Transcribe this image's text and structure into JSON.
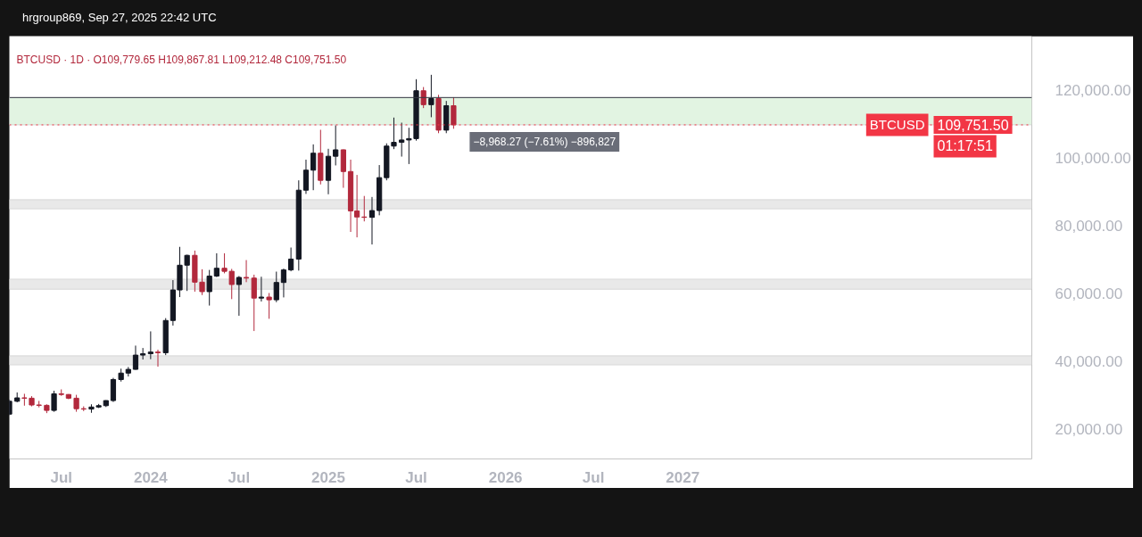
{
  "chart_data": {
    "type": "candlestick",
    "title": "hrgroup869, Sep 27, 2025 22:42 UTC",
    "subtitle": "BTCUSD · 1D · O109,779.65 H109,867.81 L109,212.48 C109,751.50",
    "x": [
      "2023-03-16",
      "2023-04-01",
      "2023-04-16",
      "2023-05-01",
      "2023-05-16",
      "2023-06-01",
      "2023-06-16",
      "2023-07-01",
      "2023-07-16",
      "2023-08-01",
      "2023-08-16",
      "2023-09-01",
      "2023-09-16",
      "2023-10-01",
      "2023-10-16",
      "2023-11-01",
      "2023-11-16",
      "2023-12-01",
      "2023-12-16",
      "2024-01-01",
      "2024-01-16",
      "2024-02-01",
      "2024-02-16",
      "2024-03-01",
      "2024-03-16",
      "2024-04-01",
      "2024-04-16",
      "2024-05-01",
      "2024-05-16",
      "2024-06-01",
      "2024-06-16",
      "2024-07-01",
      "2024-07-16",
      "2024-08-01",
      "2024-08-16",
      "2024-09-01",
      "2024-09-16",
      "2024-10-01",
      "2024-10-16",
      "2024-11-01",
      "2024-11-16",
      "2024-12-01",
      "2024-12-16",
      "2025-01-01",
      "2025-01-16",
      "2025-02-01",
      "2025-02-16",
      "2025-03-01",
      "2025-03-16",
      "2025-04-01",
      "2025-04-16",
      "2025-05-01",
      "2025-05-16",
      "2025-06-01",
      "2025-06-16",
      "2025-07-01",
      "2025-07-16",
      "2025-08-01",
      "2025-08-16",
      "2025-09-01",
      "2025-09-16"
    ],
    "ohlc": [
      [
        24500,
        28800,
        24200,
        28300
      ],
      [
        28300,
        30900,
        28000,
        29300
      ],
      [
        29300,
        30500,
        27000,
        29200
      ],
      [
        29200,
        29800,
        26800,
        27200
      ],
      [
        27200,
        28400,
        26500,
        27100
      ],
      [
        27100,
        27400,
        24800,
        25600
      ],
      [
        25600,
        31400,
        25200,
        30500
      ],
      [
        30500,
        31800,
        29900,
        30300
      ],
      [
        30300,
        30400,
        28900,
        29200
      ],
      [
        29200,
        30200,
        25200,
        26100
      ],
      [
        26100,
        26800,
        25400,
        26000
      ],
      [
        26000,
        27400,
        24900,
        26600
      ],
      [
        26600,
        27500,
        26300,
        27000
      ],
      [
        27000,
        28600,
        26600,
        28500
      ],
      [
        28500,
        35200,
        28100,
        34700
      ],
      [
        34700,
        37900,
        34100,
        36600
      ],
      [
        36600,
        38400,
        35600,
        37700
      ],
      [
        37700,
        44700,
        37600,
        41900
      ],
      [
        41900,
        44000,
        40600,
        42300
      ],
      [
        42300,
        48900,
        40700,
        42800
      ],
      [
        42800,
        43500,
        38500,
        42600
      ],
      [
        42600,
        52800,
        41900,
        52100
      ],
      [
        52100,
        64000,
        50600,
        61100
      ],
      [
        61100,
        73800,
        59000,
        68400
      ],
      [
        68400,
        71500,
        60800,
        71300
      ],
      [
        71300,
        72700,
        60600,
        63400
      ],
      [
        63400,
        67200,
        59600,
        60600
      ],
      [
        60600,
        67000,
        56500,
        65200
      ],
      [
        65200,
        71900,
        64900,
        67500
      ],
      [
        67500,
        71900,
        66000,
        66600
      ],
      [
        66600,
        67300,
        58400,
        62700
      ],
      [
        62700,
        65200,
        53500,
        64800
      ],
      [
        64800,
        69900,
        63400,
        64600
      ],
      [
        64600,
        65600,
        49000,
        58700
      ],
      [
        58700,
        65000,
        57700,
        59000
      ],
      [
        59000,
        60200,
        52600,
        58200
      ],
      [
        58200,
        66500,
        57500,
        63300
      ],
      [
        63300,
        67400,
        58900,
        67000
      ],
      [
        67000,
        73600,
        66600,
        70200
      ],
      [
        70200,
        93400,
        66800,
        90500
      ],
      [
        90500,
        99500,
        89400,
        96400
      ],
      [
        96400,
        104000,
        90500,
        101400
      ],
      [
        101400,
        108300,
        92200,
        93400
      ],
      [
        93400,
        102700,
        89300,
        100500
      ],
      [
        100500,
        109600,
        97800,
        102400
      ],
      [
        102400,
        102500,
        91200,
        96000
      ],
      [
        96000,
        99500,
        78200,
        84400
      ],
      [
        84400,
        95000,
        76600,
        82600
      ],
      [
        82600,
        88800,
        81300,
        82500
      ],
      [
        82500,
        88500,
        74500,
        84500
      ],
      [
        84500,
        97900,
        83100,
        94200
      ],
      [
        94200,
        104300,
        93400,
        103500
      ],
      [
        103500,
        111900,
        102600,
        104600
      ],
      [
        104600,
        110400,
        100400,
        105300
      ],
      [
        105300,
        108900,
        98200,
        105700
      ],
      [
        105700,
        123200,
        105100,
        119800
      ],
      [
        119800,
        120900,
        114700,
        115700
      ],
      [
        115700,
        124500,
        112000,
        117500
      ],
      [
        117500,
        118600,
        107300,
        108200
      ],
      [
        108200,
        116800,
        107300,
        115400
      ],
      [
        115400,
        117900,
        108600,
        109751.5
      ]
    ],
    "colors": [
      "#131722",
      "#131722",
      "#b2283c",
      "#b2283c",
      "#b2283c",
      "#b2283c",
      "#131722",
      "#b2283c",
      "#b2283c",
      "#b2283c",
      "#b2283c",
      "#131722",
      "#131722",
      "#131722",
      "#131722",
      "#131722",
      "#131722",
      "#131722",
      "#131722",
      "#131722",
      "#b2283c",
      "#131722",
      "#131722",
      "#131722",
      "#131722",
      "#b2283c",
      "#b2283c",
      "#131722",
      "#131722",
      "#b2283c",
      "#b2283c",
      "#131722",
      "#b2283c",
      "#b2283c",
      "#131722",
      "#b2283c",
      "#131722",
      "#131722",
      "#131722",
      "#131722",
      "#131722",
      "#131722",
      "#b2283c",
      "#131722",
      "#131722",
      "#b2283c",
      "#b2283c",
      "#b2283c",
      "#b2283c",
      "#131722",
      "#131722",
      "#131722",
      "#131722",
      "#131722",
      "#131722",
      "#131722",
      "#b2283c",
      "#131722",
      "#b2283c",
      "#131722",
      "#b2283c"
    ],
    "xlim": [
      "2023-03-16",
      "2028-12-20"
    ],
    "xticks": [
      {
        "value": "2023-07-01",
        "label": "Jul"
      },
      {
        "value": "2024-01-01",
        "label": "2024"
      },
      {
        "value": "2024-07-01",
        "label": "Jul"
      },
      {
        "value": "2025-01-01",
        "label": "2025"
      },
      {
        "value": "2025-07-01",
        "label": "Jul"
      },
      {
        "value": "2026-01-01",
        "label": "2026"
      },
      {
        "value": "2026-07-01",
        "label": "Jul"
      },
      {
        "value": "2027-01-01",
        "label": "2027"
      }
    ],
    "ylim": [
      11300,
      135900
    ],
    "yticks": [
      {
        "value": 20000,
        "label": "20,000.00"
      },
      {
        "value": 40000,
        "label": "40,000.00"
      },
      {
        "value": 60000,
        "label": "60,000.00"
      },
      {
        "value": 80000,
        "label": "80,000.00"
      },
      {
        "value": 100000,
        "label": "100,000.00"
      },
      {
        "value": 120000,
        "label": "120,000.00"
      }
    ],
    "grid": false,
    "ref_lines": [
      {
        "axis": "y",
        "value": 109751.5,
        "label": "BTCUSD",
        "color": "#f23645",
        "line_style": "dotted"
      },
      {
        "axis": "y",
        "value": 117800,
        "color": "#363a45",
        "line_style": "solid"
      }
    ],
    "bands": [
      {
        "axis": "y",
        "from": 109751.5,
        "to": 117800,
        "color": "#e2f4e2"
      },
      {
        "axis": "y",
        "from": 85000,
        "to": 87700,
        "color": "#e9e9e9"
      },
      {
        "axis": "y",
        "from": 61300,
        "to": 64300,
        "color": "#e9e9e9"
      },
      {
        "axis": "y",
        "from": 39000,
        "to": 41700,
        "color": "#e9e9e9"
      }
    ],
    "annotations": [
      {
        "text": "−8,968.27 (−7.61%) −896,827",
        "x": "2025-09-27",
        "y": 109751.5
      },
      "109,751.50",
      "01:17:51"
    ]
  }
}
